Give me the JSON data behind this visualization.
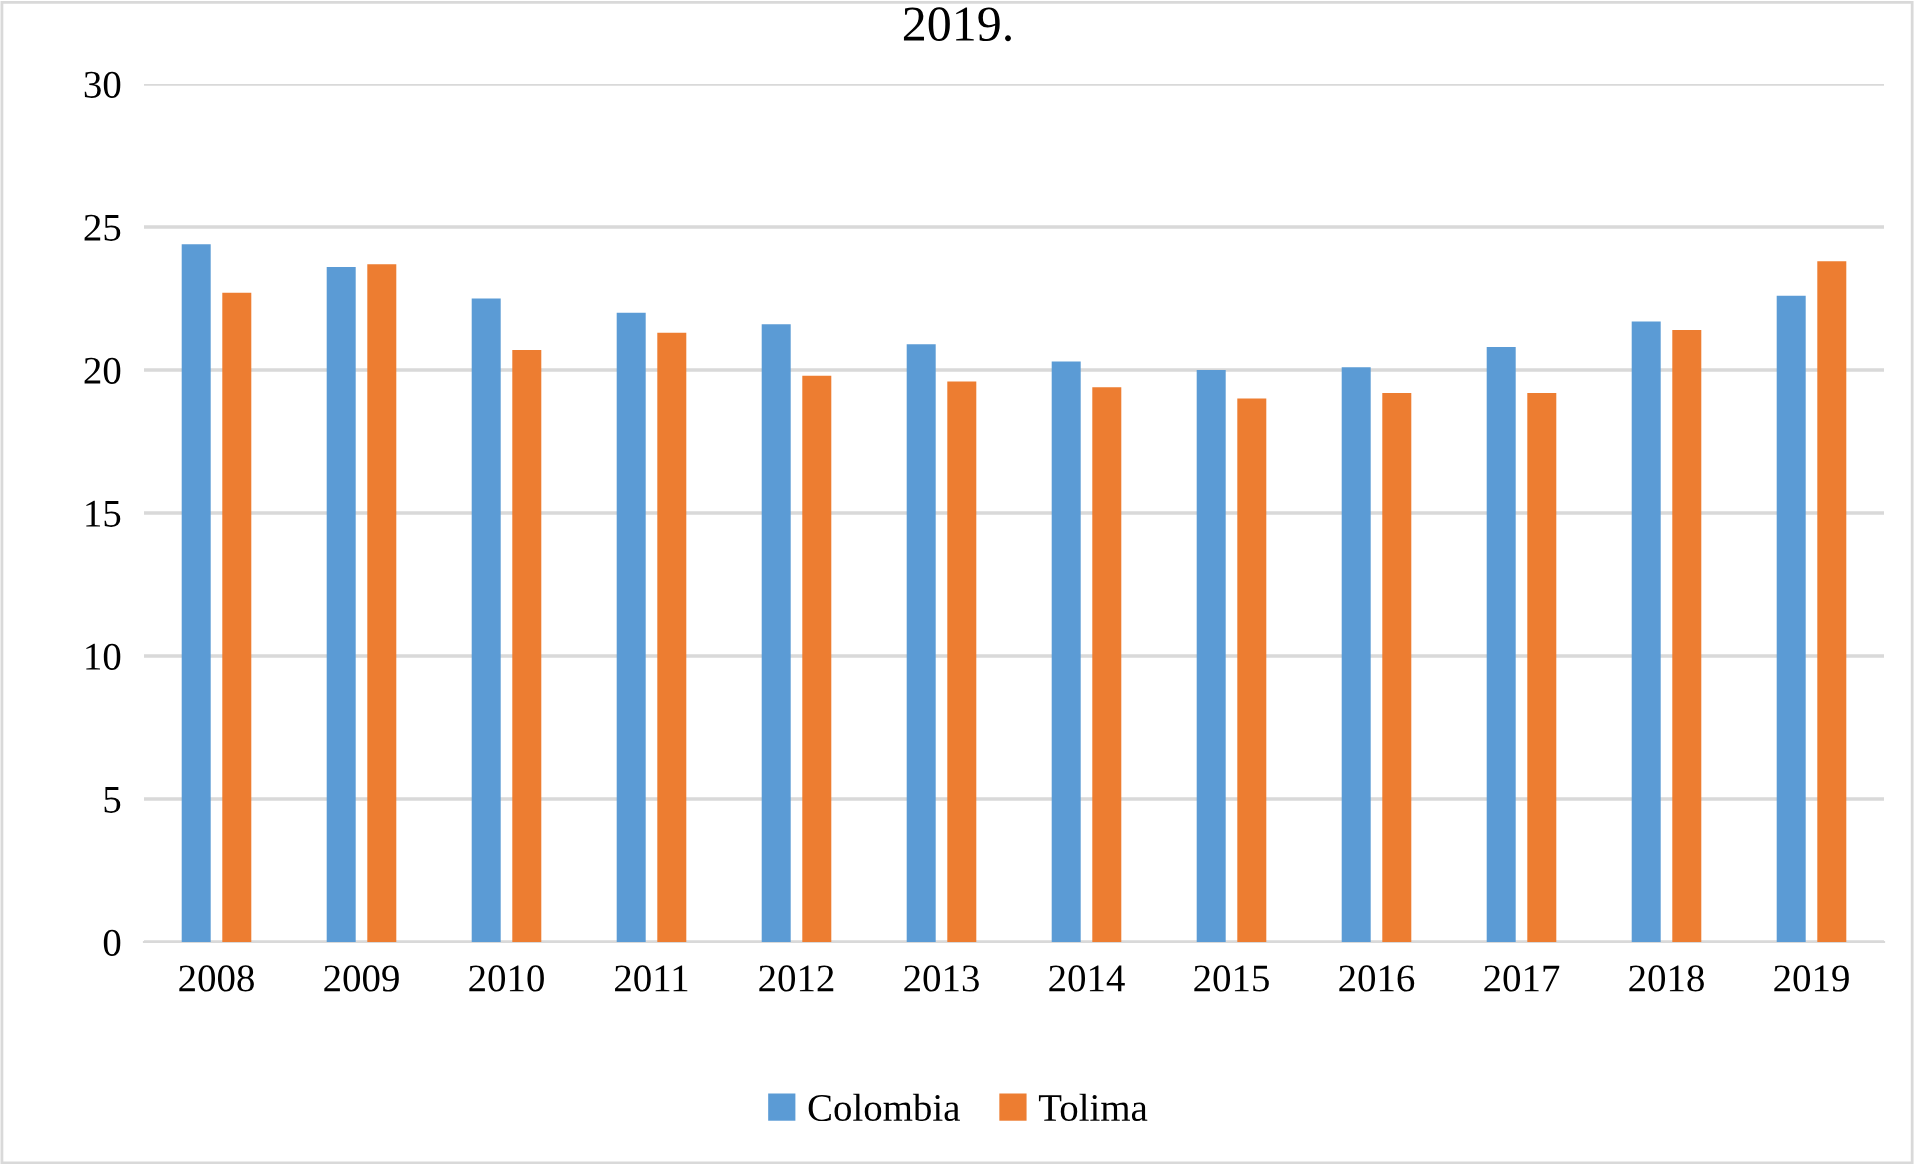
{
  "chart_data": {
    "type": "bar",
    "title": "2019.",
    "categories": [
      "2008",
      "2009",
      "2010",
      "2011",
      "2012",
      "2013",
      "2014",
      "2015",
      "2016",
      "2017",
      "2018",
      "2019"
    ],
    "series": [
      {
        "name": "Colombia",
        "color": "#5b9bd5",
        "values": [
          24.4,
          23.6,
          22.5,
          22.0,
          21.6,
          20.9,
          20.3,
          20.0,
          20.1,
          20.8,
          21.7,
          22.6
        ]
      },
      {
        "name": "Tolima",
        "color": "#ed7d31",
        "values": [
          22.7,
          23.7,
          20.7,
          21.3,
          19.8,
          19.6,
          19.4,
          19.0,
          19.2,
          19.2,
          21.4,
          23.8
        ]
      }
    ],
    "ylim": [
      0,
      30
    ],
    "yticks": [
      0,
      5,
      10,
      15,
      20,
      25,
      30
    ],
    "grid": "y",
    "legend": "bottom"
  }
}
